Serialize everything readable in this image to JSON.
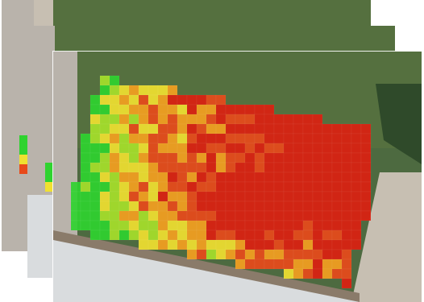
{
  "map": {
    "type": "field yield heat map over satellite imagery",
    "layers": [
      "satellite-basemap",
      "yield-grid"
    ],
    "colors": {
      "grass_dark": "#3f5a36",
      "grass_mid": "#4d6a40",
      "field_stripes": "#55703f",
      "road": "#b9b3ab",
      "dirt": "#8a7b6a",
      "roof": "#d9dcde",
      "trees": "#2f4a2a",
      "pale_soil": "#c7bfb2",
      "low": "#2fd32f",
      "mid_low": "#a6e02a",
      "mid": "#f0e030",
      "mid_high": "#f4a020",
      "high": "#e84a1a",
      "very_high": "#dc2010"
    }
  }
}
